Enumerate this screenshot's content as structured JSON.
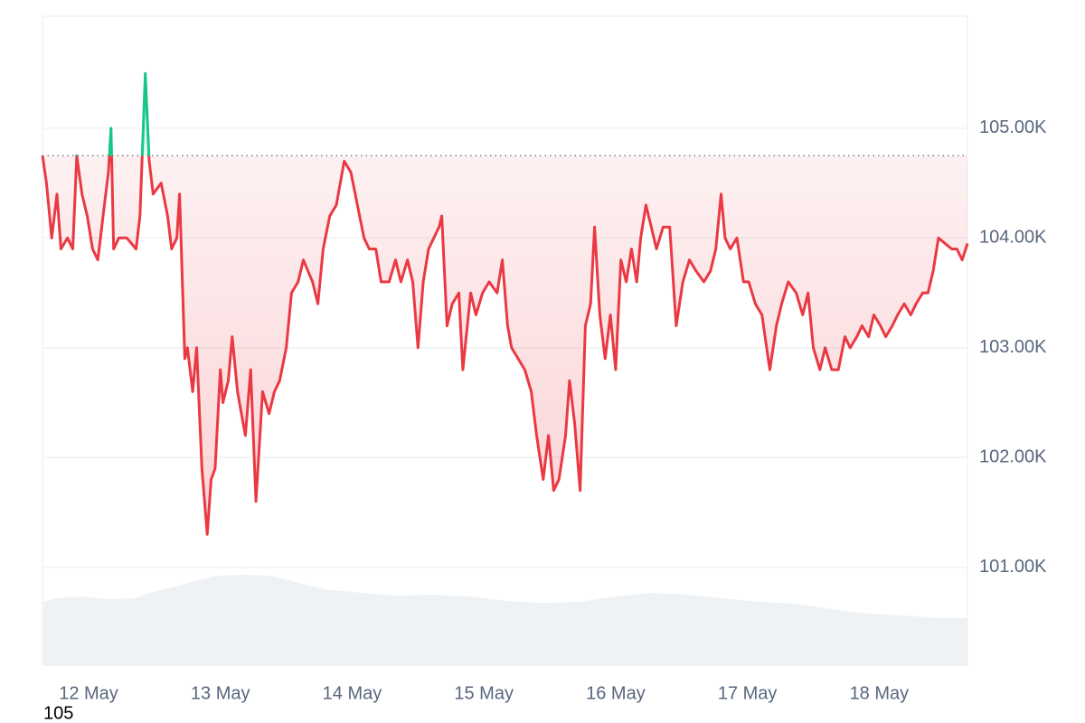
{
  "chart_data": {
    "type": "line",
    "annotation": "105",
    "baseline": 104750,
    "xlim": [
      -0.35,
      6.67
    ],
    "xticks": [
      {
        "value": 0,
        "label": "12 May"
      },
      {
        "value": 1,
        "label": "13 May"
      },
      {
        "value": 2,
        "label": "14 May"
      },
      {
        "value": 3,
        "label": "15 May"
      },
      {
        "value": 4,
        "label": "16 May"
      },
      {
        "value": 5,
        "label": "17 May"
      },
      {
        "value": 6,
        "label": "18 May"
      }
    ],
    "ylim": [
      100100,
      106020
    ],
    "yticks": [
      {
        "value": 101000,
        "label": "101.00K"
      },
      {
        "value": 102000,
        "label": "102.00K"
      },
      {
        "value": 103000,
        "label": "103.00K"
      },
      {
        "value": 104000,
        "label": "104.00K"
      },
      {
        "value": 105000,
        "label": "105.00K"
      }
    ],
    "grid": true,
    "up_color": "#16c784",
    "down_color": "#ea3943",
    "x": [
      -0.35,
      -0.32,
      -0.28,
      -0.24,
      -0.21,
      -0.16,
      -0.12,
      -0.09,
      -0.05,
      -0.01,
      0.03,
      0.07,
      0.11,
      0.15,
      0.17,
      0.19,
      0.23,
      0.29,
      0.36,
      0.39,
      0.43,
      0.46,
      0.49,
      0.55,
      0.6,
      0.63,
      0.67,
      0.69,
      0.73,
      0.75,
      0.79,
      0.82,
      0.86,
      0.9,
      0.93,
      0.96,
      1.0,
      1.02,
      1.06,
      1.09,
      1.13,
      1.16,
      1.19,
      1.23,
      1.27,
      1.32,
      1.37,
      1.41,
      1.45,
      1.5,
      1.54,
      1.59,
      1.63,
      1.7,
      1.74,
      1.78,
      1.83,
      1.88,
      1.94,
      1.99,
      2.04,
      2.09,
      2.13,
      2.18,
      2.22,
      2.28,
      2.33,
      2.37,
      2.42,
      2.46,
      2.5,
      2.54,
      2.58,
      2.62,
      2.66,
      2.68,
      2.72,
      2.76,
      2.81,
      2.84,
      2.9,
      2.94,
      2.99,
      3.04,
      3.1,
      3.14,
      3.18,
      3.21,
      3.26,
      3.31,
      3.36,
      3.4,
      3.45,
      3.49,
      3.53,
      3.57,
      3.62,
      3.65,
      3.69,
      3.73,
      3.77,
      3.81,
      3.84,
      3.88,
      3.92,
      3.96,
      4.0,
      4.04,
      4.08,
      4.12,
      4.16,
      4.19,
      4.23,
      4.27,
      4.31,
      4.36,
      4.41,
      4.46,
      4.51,
      4.56,
      4.61,
      4.67,
      4.72,
      4.76,
      4.8,
      4.83,
      4.87,
      4.92,
      4.97,
      5.01,
      5.06,
      5.11,
      5.17,
      5.22,
      5.26,
      5.31,
      5.37,
      5.42,
      5.46,
      5.5,
      5.55,
      5.59,
      5.64,
      5.69,
      5.74,
      5.78,
      5.83,
      5.87,
      5.92,
      5.96,
      6.01,
      6.05,
      6.1,
      6.14,
      6.19,
      6.24,
      6.28,
      6.33,
      6.37,
      6.41,
      6.45,
      6.5,
      6.55,
      6.59,
      6.63,
      6.67
    ],
    "values": [
      104750,
      104500,
      104000,
      104400,
      103900,
      104000,
      103900,
      104750,
      104400,
      104200,
      103900,
      103800,
      104200,
      104600,
      105000,
      103900,
      104000,
      104000,
      103900,
      104200,
      105500,
      104700,
      104400,
      104500,
      104200,
      103900,
      104000,
      104400,
      102900,
      103000,
      102600,
      103000,
      101900,
      101300,
      101800,
      101900,
      102800,
      102500,
      102700,
      103100,
      102600,
      102400,
      102200,
      102800,
      101600,
      102600,
      102400,
      102600,
      102700,
      103000,
      103500,
      103600,
      103800,
      103600,
      103400,
      103900,
      104200,
      104300,
      104700,
      104600,
      104300,
      104000,
      103900,
      103900,
      103600,
      103600,
      103800,
      103600,
      103800,
      103600,
      103000,
      103600,
      103900,
      104000,
      104100,
      104200,
      103200,
      103400,
      103500,
      102800,
      103500,
      103300,
      103500,
      103600,
      103500,
      103800,
      103200,
      103000,
      102900,
      102800,
      102600,
      102200,
      101800,
      102200,
      101700,
      101800,
      102200,
      102700,
      102300,
      101700,
      103200,
      103400,
      104100,
      103300,
      102900,
      103300,
      102800,
      103800,
      103600,
      103900,
      103600,
      104000,
      104300,
      104100,
      103900,
      104100,
      104100,
      103200,
      103600,
      103800,
      103700,
      103600,
      103700,
      103900,
      104400,
      104000,
      103900,
      104000,
      103600,
      103600,
      103400,
      103300,
      102800,
      103200,
      103400,
      103600,
      103500,
      103300,
      103500,
      103000,
      102800,
      103000,
      102800,
      102800,
      103100,
      103000,
      103100,
      103200,
      103100,
      103300,
      103200,
      103100,
      103200,
      103300,
      103400,
      103300,
      103400,
      103500,
      103500,
      103700,
      104000,
      103950,
      103900,
      103900,
      103800,
      103950
    ]
  }
}
